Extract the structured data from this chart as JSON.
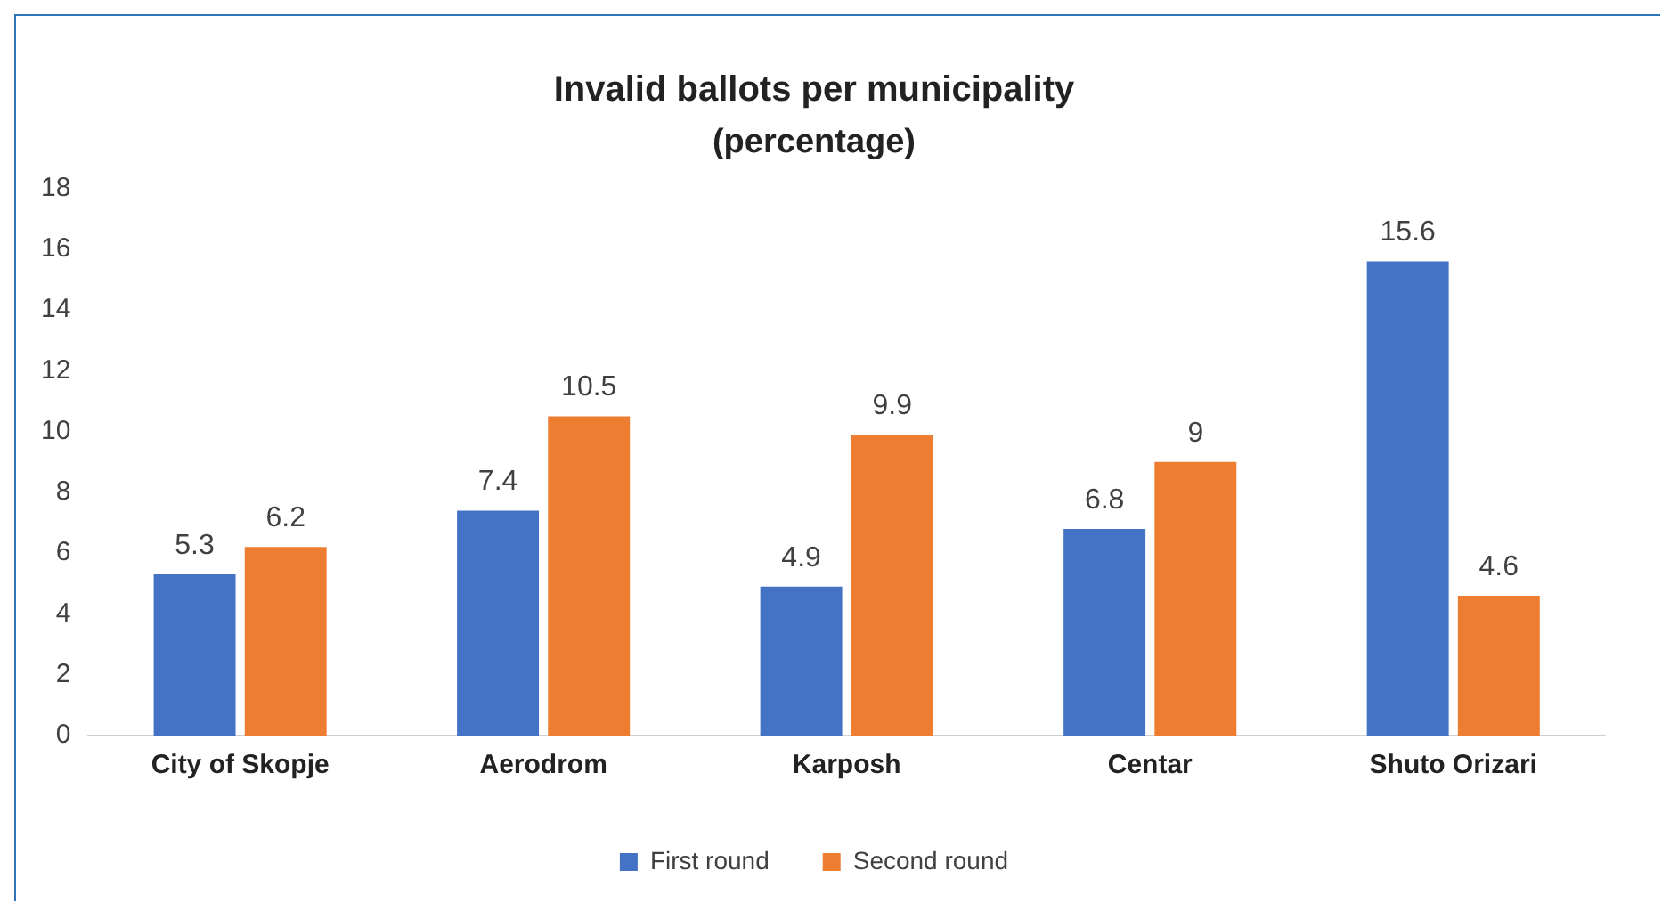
{
  "chart_data": {
    "type": "bar",
    "title": "Invalid ballots per municipality",
    "subtitle": "(percentage)",
    "categories": [
      "City of Skopje",
      "Aerodrom",
      "Karposh",
      "Centar",
      "Shuto Orizari"
    ],
    "series": [
      {
        "name": "First round",
        "color": "#4472c4",
        "values": [
          5.3,
          7.4,
          4.9,
          6.8,
          15.6
        ]
      },
      {
        "name": "Second round",
        "color": "#ed7d31",
        "values": [
          6.2,
          10.5,
          9.9,
          9,
          4.6
        ]
      }
    ],
    "ylim": [
      0,
      18
    ],
    "yticks": [
      0,
      2,
      4,
      6,
      8,
      10,
      12,
      14,
      16,
      18
    ],
    "grid": false,
    "legend": "bottom",
    "data_labels": true
  }
}
